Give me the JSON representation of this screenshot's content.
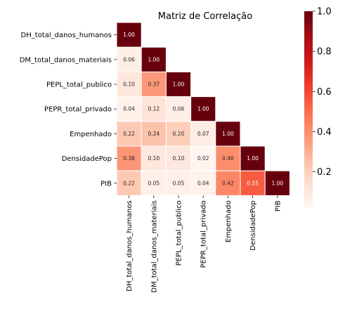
{
  "chart_data": {
    "type": "heatmap",
    "title": "Matriz de Correlação",
    "variables": [
      "DH_total_danos_humanos",
      "DM_total_danos_materiais",
      "PEPL_total_publico",
      "PEPR_total_privado",
      "Empenhado",
      "DensidadePop",
      "PIB"
    ],
    "matrix": [
      [
        1.0
      ],
      [
        0.06,
        1.0
      ],
      [
        0.1,
        0.37,
        1.0
      ],
      [
        0.04,
        0.12,
        0.06,
        1.0
      ],
      [
        0.22,
        0.24,
        0.2,
        0.07,
        1.0
      ],
      [
        0.38,
        0.1,
        0.1,
        0.02,
        0.4,
        1.0
      ],
      [
        0.22,
        0.05,
        0.05,
        0.04,
        0.42,
        0.55,
        1.0
      ]
    ],
    "mask": "upper triangle hidden",
    "colormap": "Reds",
    "vmin": 0.02,
    "vmax": 1.0,
    "colorbar_ticks": [
      0.2,
      0.4,
      0.6,
      0.8,
      1.0
    ],
    "annotation_format": "0.00",
    "cell_border_color": "#ffffff"
  }
}
